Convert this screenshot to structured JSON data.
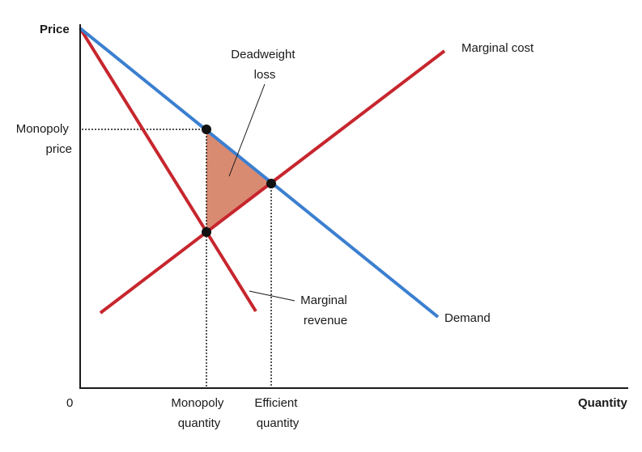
{
  "axes": {
    "y_label": "Price",
    "x_label": "Quantity",
    "origin_label": "0"
  },
  "ticks": {
    "monopoly_price": [
      "Monopoly",
      "price"
    ],
    "monopoly_quantity": [
      "Monopoly",
      "quantity"
    ],
    "efficient_quantity": [
      "Efficient",
      "quantity"
    ]
  },
  "curves": {
    "demand": {
      "label": "Demand",
      "color": "#3b7fd0"
    },
    "marginal_cost": {
      "label": "Marginal cost",
      "color": "#c7262e"
    },
    "marginal_revenue": {
      "label": [
        "Marginal",
        "revenue"
      ],
      "color": "#c7262e"
    }
  },
  "annotations": {
    "deadweight_loss": {
      "label": [
        "Deadweight",
        "loss"
      ],
      "fill": "#d98b72"
    }
  },
  "colors": {
    "axis": "#1a1a1a",
    "point": "#111111"
  }
}
